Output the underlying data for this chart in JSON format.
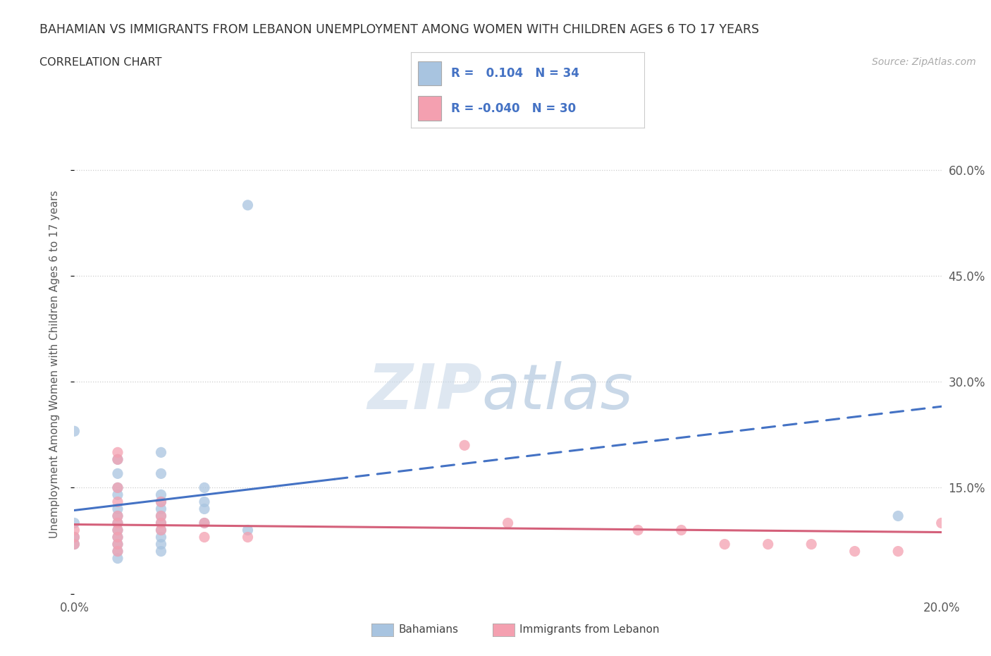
{
  "title_line1": "BAHAMIAN VS IMMIGRANTS FROM LEBANON UNEMPLOYMENT AMONG WOMEN WITH CHILDREN AGES 6 TO 17 YEARS",
  "title_line2": "CORRELATION CHART",
  "source_text": "Source: ZipAtlas.com",
  "ylabel": "Unemployment Among Women with Children Ages 6 to 17 years",
  "xlim": [
    0.0,
    0.2
  ],
  "ylim": [
    0.0,
    0.65
  ],
  "bahamian_color": "#a8c4e0",
  "lebanon_color": "#f4a0b0",
  "bahamian_scatter": [
    [
      0.0,
      0.23
    ],
    [
      0.0,
      0.1
    ],
    [
      0.0,
      0.08
    ],
    [
      0.0,
      0.07
    ],
    [
      0.01,
      0.19
    ],
    [
      0.01,
      0.17
    ],
    [
      0.01,
      0.15
    ],
    [
      0.01,
      0.14
    ],
    [
      0.01,
      0.12
    ],
    [
      0.01,
      0.11
    ],
    [
      0.01,
      0.1
    ],
    [
      0.01,
      0.09
    ],
    [
      0.01,
      0.08
    ],
    [
      0.01,
      0.07
    ],
    [
      0.01,
      0.06
    ],
    [
      0.01,
      0.05
    ],
    [
      0.02,
      0.2
    ],
    [
      0.02,
      0.17
    ],
    [
      0.02,
      0.14
    ],
    [
      0.02,
      0.13
    ],
    [
      0.02,
      0.12
    ],
    [
      0.02,
      0.11
    ],
    [
      0.02,
      0.1
    ],
    [
      0.02,
      0.09
    ],
    [
      0.02,
      0.08
    ],
    [
      0.02,
      0.07
    ],
    [
      0.02,
      0.06
    ],
    [
      0.03,
      0.15
    ],
    [
      0.03,
      0.13
    ],
    [
      0.03,
      0.12
    ],
    [
      0.03,
      0.1
    ],
    [
      0.04,
      0.55
    ],
    [
      0.04,
      0.09
    ],
    [
      0.19,
      0.11
    ]
  ],
  "lebanon_scatter": [
    [
      0.0,
      0.09
    ],
    [
      0.0,
      0.08
    ],
    [
      0.0,
      0.07
    ],
    [
      0.01,
      0.2
    ],
    [
      0.01,
      0.19
    ],
    [
      0.01,
      0.15
    ],
    [
      0.01,
      0.13
    ],
    [
      0.01,
      0.11
    ],
    [
      0.01,
      0.1
    ],
    [
      0.01,
      0.09
    ],
    [
      0.01,
      0.08
    ],
    [
      0.01,
      0.07
    ],
    [
      0.01,
      0.06
    ],
    [
      0.02,
      0.13
    ],
    [
      0.02,
      0.11
    ],
    [
      0.02,
      0.1
    ],
    [
      0.02,
      0.09
    ],
    [
      0.03,
      0.1
    ],
    [
      0.03,
      0.08
    ],
    [
      0.04,
      0.08
    ],
    [
      0.09,
      0.21
    ],
    [
      0.1,
      0.1
    ],
    [
      0.13,
      0.09
    ],
    [
      0.14,
      0.09
    ],
    [
      0.15,
      0.07
    ],
    [
      0.16,
      0.07
    ],
    [
      0.17,
      0.07
    ],
    [
      0.18,
      0.06
    ],
    [
      0.19,
      0.06
    ],
    [
      0.2,
      0.1
    ]
  ],
  "bahamian_R": 0.104,
  "bahamian_N": 34,
  "lebanon_R": -0.04,
  "lebanon_N": 30,
  "trend_blue_color": "#4472c4",
  "trend_pink_color": "#d4607a",
  "legend_label1": "Bahamians",
  "legend_label2": "Immigrants from Lebanon",
  "watermark_zip": "ZIP",
  "watermark_atlas": "atlas",
  "background_color": "#ffffff",
  "grid_color": "#c8c8c8",
  "blue_trend_y0": 0.118,
  "blue_trend_y1": 0.265,
  "pink_trend_y0": 0.098,
  "pink_trend_y1": 0.087
}
